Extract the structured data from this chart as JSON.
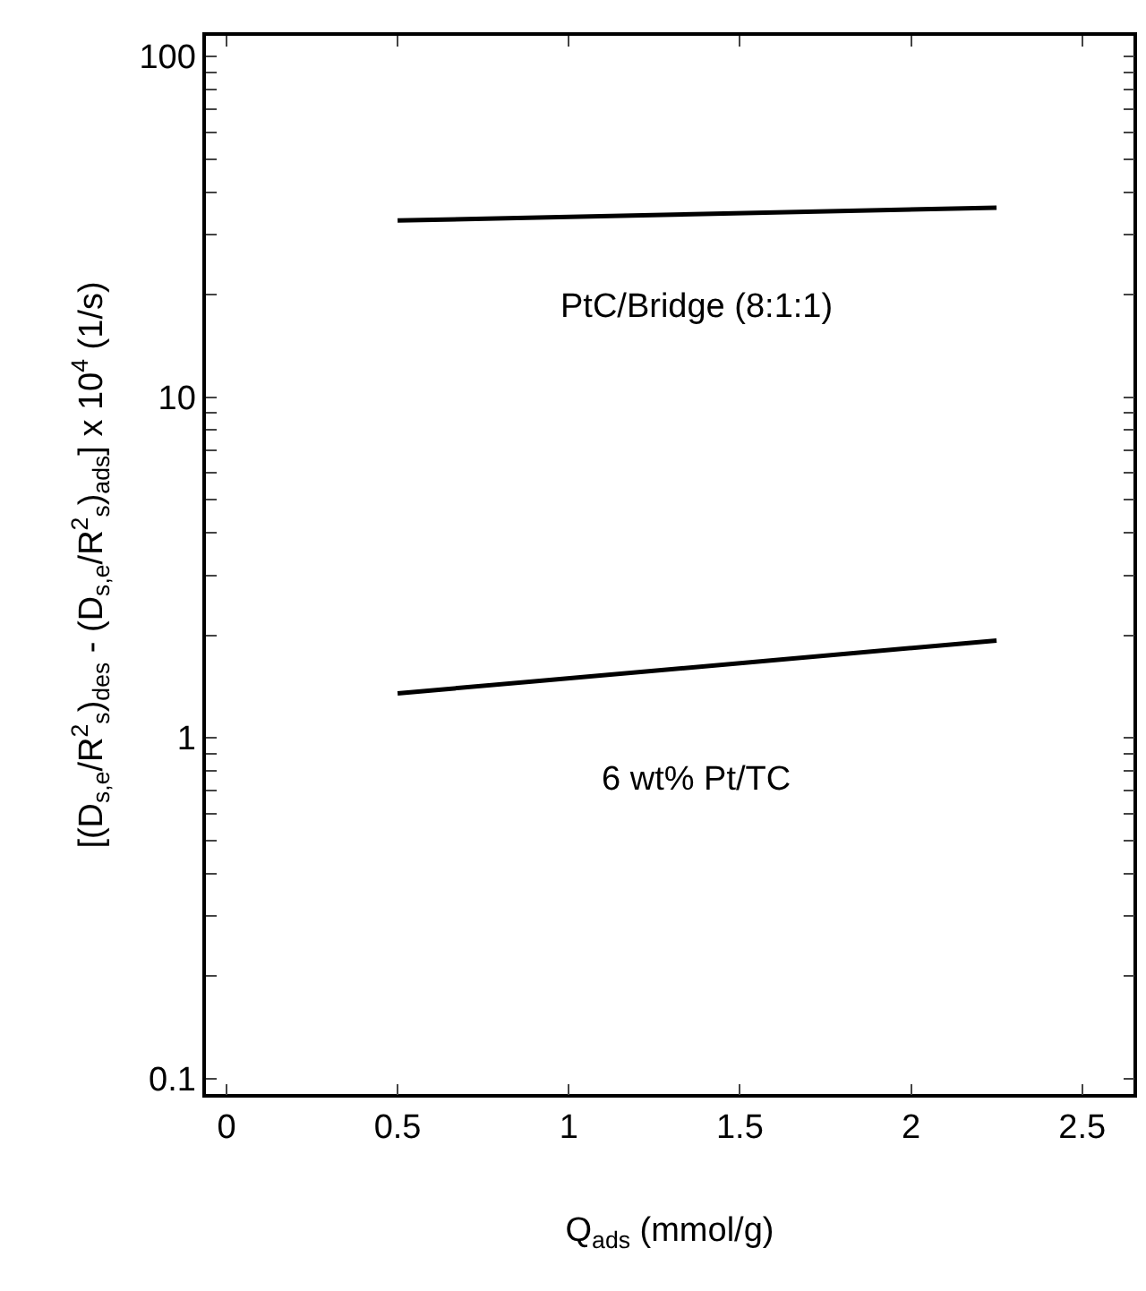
{
  "chart_data": {
    "type": "line",
    "xlabel": "Q$_{ads}$ (mmol/g)",
    "ylabel": "[(D$_{s,e}$/R$^{2}$$_{s}$)$_{des}$ - (D$_{s,e}$/R$^{2}$$_{s}$)$_{ads}$] x 10$^{4}$ (1/s)",
    "log": "y",
    "grid": false,
    "legend": false,
    "marker": "none",
    "line_style": "solid",
    "xlim": [
      -0.06,
      2.65
    ],
    "xticks": [
      0,
      0.5,
      1,
      1.5,
      2,
      2.5
    ],
    "ylim": [
      0.09,
      115
    ],
    "yticks": [
      0.1,
      {
        "value": 0.2,
        "label": null
      },
      {
        "value": 0.3,
        "label": null
      },
      {
        "value": 0.4,
        "label": null
      },
      {
        "value": 0.5,
        "label": null
      },
      {
        "value": 0.6,
        "label": null
      },
      {
        "value": 0.7,
        "label": null
      },
      {
        "value": 0.8,
        "label": null
      },
      {
        "value": 0.9,
        "label": null
      },
      1,
      {
        "value": 2,
        "label": null
      },
      {
        "value": 3,
        "label": null
      },
      {
        "value": 4,
        "label": null
      },
      {
        "value": 5,
        "label": null
      },
      {
        "value": 6,
        "label": null
      },
      {
        "value": 7,
        "label": null
      },
      {
        "value": 8,
        "label": null
      },
      {
        "value": 9,
        "label": null
      },
      10,
      {
        "value": 20,
        "label": null
      },
      {
        "value": 30,
        "label": null
      },
      {
        "value": 40,
        "label": null
      },
      {
        "value": 50,
        "label": null
      },
      {
        "value": 60,
        "label": null
      },
      {
        "value": 70,
        "label": null
      },
      {
        "value": 80,
        "label": null
      },
      {
        "value": 90,
        "label": null
      },
      100
    ],
    "series": [
      {
        "name": "PtC/Bridge (8:1:1)",
        "color": "#000000",
        "values": [
          33,
          36
        ]
      },
      {
        "name": "6 wt% Pt/TC",
        "color": "#000000",
        "values": [
          1.35,
          1.93
        ]
      }
    ],
    "x": [
      0.5,
      2.25
    ]
  }
}
